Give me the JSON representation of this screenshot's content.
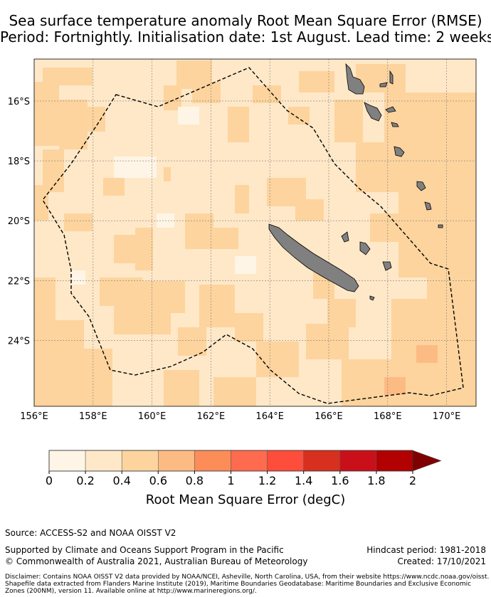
{
  "title": {
    "line1": "Sea surface temperature anomaly Root Mean Square Error (RMSE)",
    "line2": "Period: Fortnightly. Initialisation date: 1st August. Lead time: 2 weeks"
  },
  "map": {
    "lon_range": [
      156,
      171
    ],
    "lat_range": [
      -26.2,
      -14.6
    ],
    "x_ticks": [
      "156°E",
      "158°E",
      "160°E",
      "162°E",
      "164°E",
      "166°E",
      "168°E",
      "170°E"
    ],
    "y_ticks": [
      "16°S",
      "18°S",
      "20°S",
      "22°S",
      "24°S"
    ],
    "land_color": "#808080",
    "boundary_style": "dashed"
  },
  "colorbar": {
    "label": "Root Mean Square Error (degC)",
    "ticks": [
      "0",
      "0.2",
      "0.4",
      "0.6",
      "0.8",
      "1",
      "1.2",
      "1.4",
      "1.6",
      "1.8",
      "2"
    ],
    "colors": [
      "#fff5e6",
      "#ffe8c8",
      "#fdd49e",
      "#fdbb84",
      "#fc8d59",
      "#fe6b4f",
      "#fe4d3a",
      "#d7301f",
      "#c9101a",
      "#b30000"
    ],
    "extend_color": "#7f0000"
  },
  "footer": {
    "source": "Source: ACCESS-S2 and NOAA OISST V2",
    "supported": "Supported by Climate and Oceans Support Program in the Pacific",
    "copyright": "© Commonwealth of Australia 2021, Australian Bureau of Meteorology",
    "hindcast": "Hindcast period: 1981-2018",
    "created": "Created: 17/10/2021",
    "disclaimer": "Disclaimer: Contains NOAA OISST V2 data provided by NOAA/NCEI, Asheville, North Carolina, USA, from their website https://www.ncdc.noaa.gov/oisst.\nShapefile data extracted from Flanders Marine Institute (2019), Maritime Boundaries Geodatabase: Maritime Boundaries and Exclusive Economic\nZones (200NM), version 11. Available online at http://www.marineregions.org/."
  }
}
